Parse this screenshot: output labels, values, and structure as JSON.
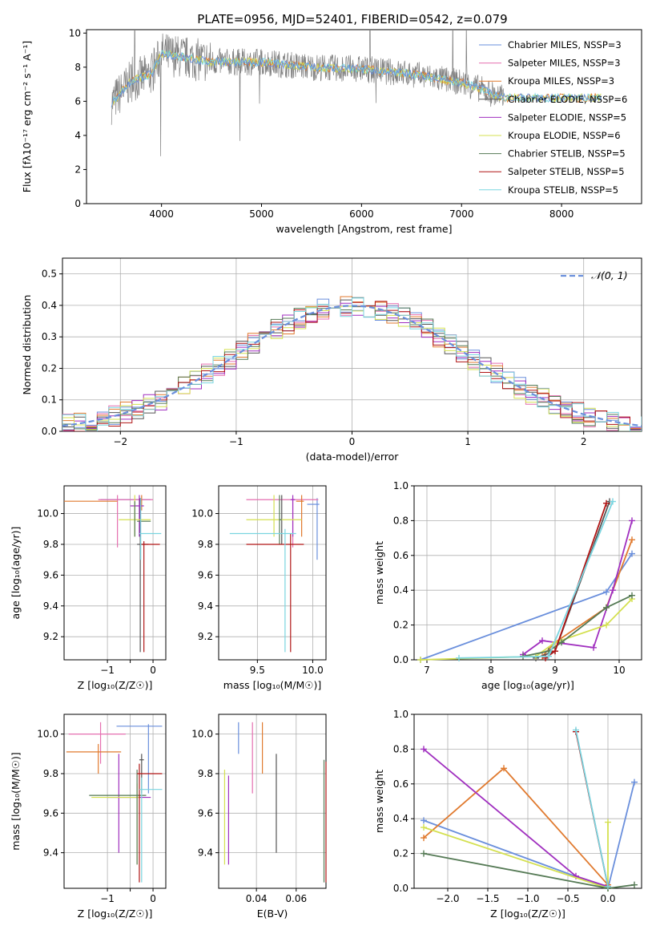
{
  "figure": {
    "title": "PLATE=0956, MJD=52401, FIBERID=0542, z=0.079"
  },
  "colors": {
    "c0": "#6a8fdc",
    "c1": "#e56fb0",
    "c2": "#e07a2f",
    "c3": "#555555",
    "c4": "#a02fbf",
    "c5": "#d4e050",
    "c6": "#557a55",
    "c7": "#b01515",
    "c8": "#7ad5e0"
  },
  "legend": [
    {
      "label": "Chabrier MILES, N$_{SSP}$=3",
      "display": "Chabrier MILES, NSSP=3",
      "color": "#6a8fdc"
    },
    {
      "label": "Salpeter MILES, NSSP=3",
      "display": "Salpeter MILES, NSSP=3",
      "color": "#e56fb0"
    },
    {
      "label": "Kroupa MILES, NSSP=3",
      "display": "Kroupa MILES, NSSP=3",
      "color": "#e07a2f"
    },
    {
      "label": "Chabrier ELODIE, NSSP=6",
      "display": "Chabrier ELODIE, NSSP=6",
      "color": "#555555"
    },
    {
      "label": "Salpeter ELODIE, NSSP=5",
      "display": "Salpeter ELODIE, NSSP=5",
      "color": "#a02fbf"
    },
    {
      "label": "Kroupa ELODIE, NSSP=6",
      "display": "Kroupa ELODIE, NSSP=6",
      "color": "#d4e050"
    },
    {
      "label": "Chabrier STELIB, NSSP=5",
      "display": "Chabrier STELIB, NSSP=5",
      "color": "#557a55"
    },
    {
      "label": "Salpeter STELIB, NSSP=5",
      "display": "Salpeter STELIB, NSSP=5",
      "color": "#b01515"
    },
    {
      "label": "Kroupa STELIB, NSSP=5",
      "display": "Kroupa STELIB, NSSP=5",
      "color": "#7ad5e0"
    }
  ],
  "chart_data": [
    {
      "id": "spectrum",
      "type": "line",
      "xlabel": "wavelength [Angstrom, rest frame]",
      "ylabel": "Flux [fλ10⁻¹⁷ erg cm⁻² s⁻¹ A⁻¹]",
      "xlim": [
        3250,
        8800
      ],
      "ylim": [
        0,
        10.2
      ],
      "xticks": [
        4000,
        5000,
        6000,
        7000,
        8000
      ],
      "yticks": [
        0,
        2,
        4,
        6,
        8,
        10
      ],
      "continuum": {
        "x": [
          3500,
          3700,
          3900,
          4000,
          4200,
          4500,
          5000,
          5500,
          6000,
          6500,
          7000,
          7200,
          7400
        ],
        "y": [
          5.9,
          7.2,
          7.6,
          8.8,
          8.6,
          8.3,
          8.3,
          8.0,
          7.9,
          7.6,
          7.1,
          6.7,
          6.2
        ]
      },
      "model_end": 8400
    },
    {
      "id": "residual_hist",
      "type": "line",
      "xlabel": "(data-model)/error",
      "ylabel": "Normed distribution",
      "xlim": [
        -2.5,
        2.5
      ],
      "ylim": [
        0,
        0.55
      ],
      "xticks": [
        -2,
        -1,
        0,
        1,
        2
      ],
      "yticks": [
        0,
        0.1,
        0.2,
        0.3,
        0.4,
        0.5
      ],
      "series": [
        {
          "name": "𝒩(0, 1)",
          "mu": 0,
          "sigma": 1
        }
      ],
      "bin_width": 0.1
    },
    {
      "id": "age_vs_Z",
      "type": "scatter",
      "xlabel": "Z [log₁₀(Z/Z☉)]",
      "ylabel": "age  [log₁₀(age/yr)]",
      "xlim": [
        -1.95,
        0.28
      ],
      "ylim": [
        9.05,
        10.18
      ],
      "xticks": [
        -1,
        -0.5,
        0
      ],
      "xticklabels": [
        "−1",
        "",
        "0"
      ],
      "yticks": [
        9.2,
        9.4,
        9.6,
        9.8,
        10.0
      ],
      "points": [
        {
          "x": -0.27,
          "y": 10.09,
          "xlo": -1.15,
          "xhi": -0.05,
          "ylo": 10.08,
          "yhi": 10.1
        },
        {
          "x": -0.78,
          "y": 10.09,
          "xlo": -1.2,
          "xhi": 0.0,
          "ylo": 9.78,
          "yhi": 10.12
        },
        {
          "x": -0.25,
          "y": 10.08,
          "xlo": -1.95,
          "xhi": -0.78,
          "ylo": 10.02,
          "yhi": 10.12
        },
        {
          "x": -0.28,
          "y": 9.8,
          "xlo": -0.35,
          "xhi": -0.1,
          "ylo": 9.1,
          "yhi": 10.1
        },
        {
          "x": -0.3,
          "y": 10.05,
          "xlo": -0.5,
          "xhi": -0.2,
          "ylo": 9.85,
          "yhi": 10.12
        },
        {
          "x": -0.4,
          "y": 9.96,
          "xlo": -0.75,
          "xhi": -0.05,
          "ylo": 9.85,
          "yhi": 10.12
        },
        {
          "x": -0.4,
          "y": 9.95,
          "xlo": -0.35,
          "xhi": -0.05,
          "ylo": 9.85,
          "yhi": 10.08
        },
        {
          "x": -0.2,
          "y": 9.8,
          "xlo": -0.25,
          "xhi": 0.15,
          "ylo": 9.1,
          "yhi": 9.82
        },
        {
          "x": -0.27,
          "y": 9.87,
          "xlo": -0.3,
          "xhi": 0.18,
          "ylo": 9.7,
          "yhi": 10.1
        }
      ]
    },
    {
      "id": "age_vs_mass",
      "type": "scatter",
      "xlabel": "mass [log₁₀(M/M☉)]",
      "ylabel": "",
      "xlim": [
        9.15,
        10.12
      ],
      "ylim": [
        9.05,
        10.18
      ],
      "xticks": [
        9.5,
        10.0
      ],
      "yticks": [
        9.2,
        9.4,
        9.6,
        9.8,
        10.0
      ],
      "points": [
        {
          "x": 10.04,
          "y": 10.06,
          "xlo": 9.95,
          "xhi": 10.06,
          "ylo": 9.7,
          "yhi": 10.1
        },
        {
          "x": 9.82,
          "y": 10.09,
          "xlo": 9.4,
          "xhi": 10.05,
          "ylo": 9.78,
          "yhi": 10.1
        },
        {
          "x": 9.9,
          "y": 10.08,
          "xlo": 9.85,
          "xhi": 9.92,
          "ylo": 9.85,
          "yhi": 10.12
        },
        {
          "x": 9.72,
          "y": 9.87,
          "xlo": 9.72,
          "xhi": 9.72,
          "ylo": 9.8,
          "yhi": 10.12
        },
        {
          "x": 9.82,
          "y": 10.09,
          "xlo": 9.8,
          "xhi": 9.84,
          "ylo": 9.85,
          "yhi": 10.12
        },
        {
          "x": 9.65,
          "y": 9.96,
          "xlo": 9.4,
          "xhi": 9.9,
          "ylo": 9.85,
          "yhi": 10.12
        },
        {
          "x": 9.7,
          "y": 9.96,
          "xlo": 9.7,
          "xhi": 9.72,
          "ylo": 9.8,
          "yhi": 10.12
        },
        {
          "x": 9.8,
          "y": 9.8,
          "xlo": 9.4,
          "xhi": 9.92,
          "ylo": 9.1,
          "yhi": 9.87
        },
        {
          "x": 9.75,
          "y": 9.87,
          "xlo": 9.25,
          "xhi": 9.85,
          "ylo": 9.1,
          "yhi": 9.9
        }
      ]
    },
    {
      "id": "weight_vs_age",
      "type": "line",
      "xlabel": "age  [log₁₀(age/yr)]",
      "ylabel": "mass weight",
      "xlim": [
        6.8,
        10.35
      ],
      "ylim": [
        0,
        1.0
      ],
      "xticks": [
        7,
        8,
        9,
        10
      ],
      "yticks": [
        0,
        0.2,
        0.4,
        0.6,
        0.8,
        1.0
      ],
      "series": [
        {
          "color": "#6a8fdc",
          "x": [
            6.9,
            9.8,
            10.2
          ],
          "y": [
            0.0,
            0.39,
            0.61
          ]
        },
        {
          "color": "#e07a2f",
          "x": [
            8.8,
            9.0,
            9.8,
            10.2
          ],
          "y": [
            0.02,
            0.1,
            0.3,
            0.69
          ]
        },
        {
          "color": "#555555",
          "x": [
            8.7,
            9.0,
            9.85
          ],
          "y": [
            0.01,
            0.05,
            0.91
          ]
        },
        {
          "color": "#a02fbf",
          "x": [
            8.5,
            8.8,
            9.6,
            9.9,
            10.2
          ],
          "y": [
            0.03,
            0.11,
            0.07,
            0.4,
            0.8
          ]
        },
        {
          "color": "#d4e050",
          "x": [
            6.9,
            8.7,
            9.0,
            9.8,
            10.2
          ],
          "y": [
            0.0,
            0.02,
            0.1,
            0.2,
            0.35
          ]
        },
        {
          "color": "#557a55",
          "x": [
            8.5,
            8.9,
            9.1,
            9.8,
            10.2
          ],
          "y": [
            0.02,
            0.05,
            0.1,
            0.3,
            0.37
          ]
        },
        {
          "color": "#b01515",
          "x": [
            8.85,
            9.0,
            9.8
          ],
          "y": [
            0.01,
            0.05,
            0.9
          ]
        },
        {
          "color": "#7ad5e0",
          "x": [
            7.5,
            8.9,
            9.9
          ],
          "y": [
            0.01,
            0.02,
            0.91
          ]
        }
      ]
    },
    {
      "id": "mass_vs_Z",
      "type": "scatter",
      "xlabel": "Z [log₁₀(Z/Z☉)]",
      "ylabel": "mass [log₁₀(M/M☉)]",
      "xlim": [
        -1.95,
        0.28
      ],
      "ylim": [
        9.22,
        10.1
      ],
      "xticks": [
        -1,
        -0.5,
        0
      ],
      "xticklabels": [
        "−1",
        "",
        "0"
      ],
      "yticks": [
        9.4,
        9.6,
        9.8,
        10.0
      ],
      "points": [
        {
          "x": -0.1,
          "y": 10.04,
          "xlo": -0.8,
          "xhi": 0.2,
          "ylo": 9.7,
          "yhi": 10.05
        },
        {
          "x": -1.15,
          "y": 10.0,
          "xlo": -1.85,
          "xhi": -0.6,
          "ylo": 9.85,
          "yhi": 10.06
        },
        {
          "x": -1.2,
          "y": 9.91,
          "xlo": -1.9,
          "xhi": -0.7,
          "ylo": 9.8,
          "yhi": 9.95
        },
        {
          "x": -0.25,
          "y": 9.87,
          "xlo": -0.3,
          "xhi": -0.2,
          "ylo": 9.7,
          "yhi": 9.9
        },
        {
          "x": -0.75,
          "y": 9.68,
          "xlo": -1.0,
          "xhi": -0.05,
          "ylo": 9.4,
          "yhi": 9.9
        },
        {
          "x": -0.35,
          "y": 9.68,
          "xlo": -1.35,
          "xhi": -0.3,
          "ylo": 9.34,
          "yhi": 9.75
        },
        {
          "x": -0.35,
          "y": 9.69,
          "xlo": -1.4,
          "xhi": -0.15,
          "ylo": 9.34,
          "yhi": 9.82
        },
        {
          "x": -0.3,
          "y": 9.8,
          "xlo": -0.35,
          "xhi": 0.2,
          "ylo": 9.25,
          "yhi": 9.85
        },
        {
          "x": -0.25,
          "y": 9.72,
          "xlo": -0.3,
          "xhi": 0.2,
          "ylo": 9.25,
          "yhi": 9.78
        }
      ]
    },
    {
      "id": "mass_vs_EBV",
      "type": "scatter",
      "xlabel": "E(B-V)",
      "ylabel": "",
      "xlim": [
        0.021,
        0.075
      ],
      "ylim": [
        9.22,
        10.1
      ],
      "xticks": [
        0.04,
        0.06
      ],
      "yticks": [
        9.4,
        9.6,
        9.8,
        10.0
      ],
      "points": [
        {
          "x": 0.031,
          "y": 10.0,
          "ylo": 9.9,
          "yhi": 10.06
        },
        {
          "x": 0.038,
          "y": 9.88,
          "ylo": 9.7,
          "yhi": 10.06
        },
        {
          "x": 0.043,
          "y": 9.87,
          "ylo": 9.8,
          "yhi": 10.06
        },
        {
          "x": 0.05,
          "y": 9.65,
          "ylo": 9.4,
          "yhi": 9.9
        },
        {
          "x": 0.026,
          "y": 9.58,
          "ylo": 9.34,
          "yhi": 9.79
        },
        {
          "x": 0.024,
          "y": 9.58,
          "ylo": 9.34,
          "yhi": 9.82
        },
        {
          "x": 0.074,
          "y": 9.8,
          "ylo": 9.25,
          "yhi": 9.87
        },
        {
          "x": 0.075,
          "y": 9.72,
          "ylo": 9.25,
          "yhi": 9.86
        }
      ]
    },
    {
      "id": "weight_vs_Z",
      "type": "line",
      "xlabel": "Z [log₁₀(Z/Z☉)]",
      "ylabel": "mass weight",
      "xlim": [
        -2.42,
        0.42
      ],
      "ylim": [
        0,
        1.0
      ],
      "xticks": [
        -2.0,
        -1.5,
        -1.0,
        -0.5,
        0.0
      ],
      "xticklabels": [
        "−2.0",
        "−1.5",
        "−1.0",
        "−0.5",
        "0.0"
      ],
      "yticks": [
        0,
        0.2,
        0.4,
        0.6,
        0.8,
        1.0
      ],
      "series": [
        {
          "color": "#6a8fdc",
          "x": [
            -2.3,
            0.0,
            0.33
          ],
          "y": [
            0.39,
            0.0,
            0.61
          ]
        },
        {
          "color": "#e07a2f",
          "x": [
            -2.3,
            -1.3,
            0.0
          ],
          "y": [
            0.29,
            0.69,
            0.02
          ]
        },
        {
          "color": "#a02fbf",
          "x": [
            -2.3,
            -0.4,
            0.0
          ],
          "y": [
            0.8,
            0.07,
            0.01
          ]
        },
        {
          "color": "#d4e050",
          "x": [
            -2.3,
            0.0,
            0.0
          ],
          "y": [
            0.35,
            0.0,
            0.38
          ]
        },
        {
          "color": "#557a55",
          "x": [
            -2.3,
            0.0,
            0.33
          ],
          "y": [
            0.2,
            0.0,
            0.02
          ]
        },
        {
          "color": "#b01515",
          "x": [
            -0.4,
            0.0
          ],
          "y": [
            0.9,
            0.01
          ]
        },
        {
          "color": "#7ad5e0",
          "x": [
            -0.4,
            0.0
          ],
          "y": [
            0.91,
            0.01
          ]
        }
      ]
    }
  ]
}
